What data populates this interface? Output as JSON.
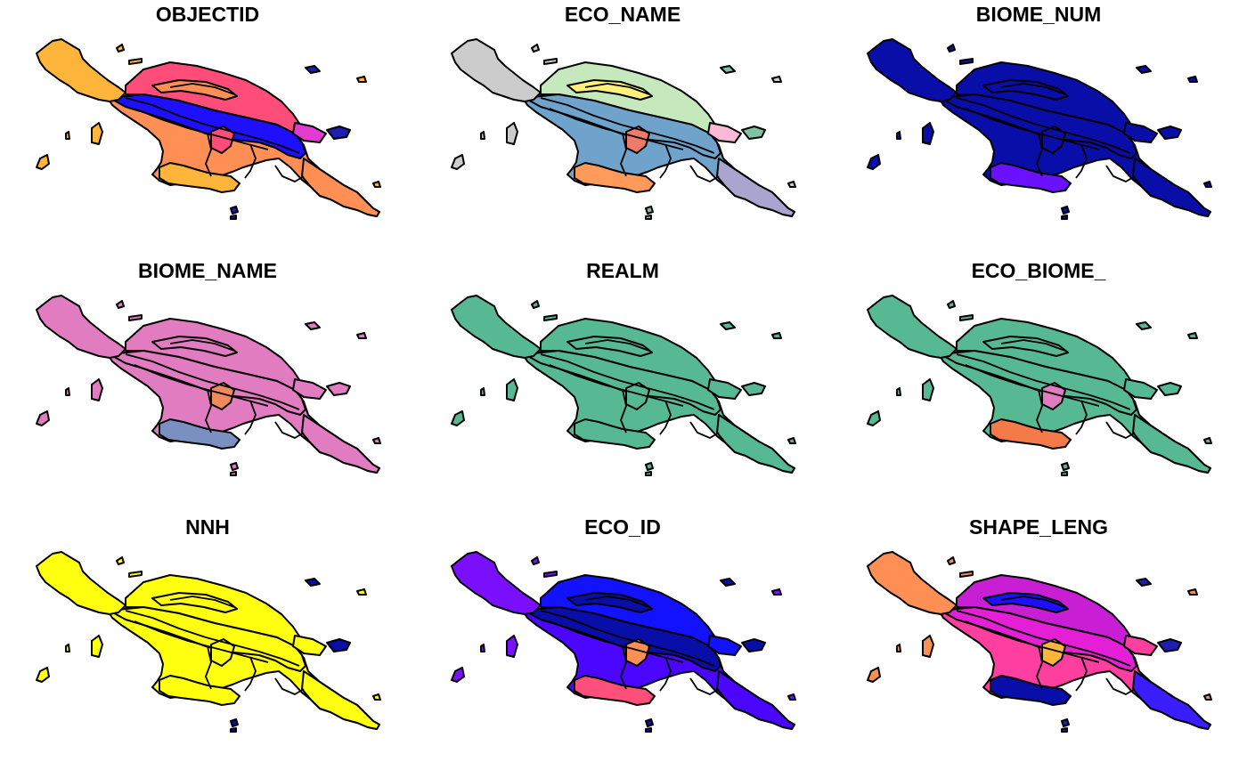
{
  "figure": {
    "panels": [
      {
        "id": "objectid",
        "title": "OBJECTID",
        "colors": {
          "main": "#ff8f55",
          "north": "#ff4d7a",
          "central": "#1e10ff",
          "west": "#ffb43a",
          "ridge": "#ff8f55",
          "south": "#ffb43a",
          "tail": "#ff8f55",
          "east": "#e13ccf",
          "islands": "#ffb43a",
          "outer": "#1e1eb0",
          "lake": "#ff4d7a"
        }
      },
      {
        "id": "eco_name",
        "title": "ECO_NAME",
        "colors": {
          "main": "#6fa3cc",
          "north": "#c5e8bc",
          "central": "#6fa3cc",
          "west": "#cccccc",
          "ridge": "#fff07a",
          "south": "#ff9a5a",
          "tail": "#a9a5cf",
          "east": "#f9b9d7",
          "islands": "#cccccc",
          "outer": "#7fc2a6",
          "lake": "#f07a6a"
        }
      },
      {
        "id": "biome_num",
        "title": "BIOME_NUM",
        "colors": {
          "main": "#0a0ea8",
          "north": "#0a0ea8",
          "central": "#0a0ea8",
          "west": "#0a0ea8",
          "ridge": "#0a0ea8",
          "south": "#6a12ff",
          "tail": "#0a0ea8",
          "east": "#0a0ea8",
          "islands": "#0a0ea8",
          "outer": "#0a0ea8",
          "lake": "#0a0ea8"
        }
      },
      {
        "id": "biome_name",
        "title": "BIOME_NAME",
        "colors": {
          "main": "#e07cbf",
          "north": "#e07cbf",
          "central": "#e07cbf",
          "west": "#e07cbf",
          "ridge": "#e07cbf",
          "south": "#7a90c0",
          "tail": "#e07cbf",
          "east": "#e07cbf",
          "islands": "#e07cbf",
          "outer": "#e07cbf",
          "lake": "#f08a5a"
        }
      },
      {
        "id": "realm",
        "title": "REALM",
        "colors": {
          "main": "#57b894",
          "north": "#57b894",
          "central": "#57b894",
          "west": "#57b894",
          "ridge": "#57b894",
          "south": "#57b894",
          "tail": "#57b894",
          "east": "#57b894",
          "islands": "#57b894",
          "outer": "#57b894",
          "lake": "#57b894"
        }
      },
      {
        "id": "eco_biome",
        "title": "ECO_BIOME_",
        "colors": {
          "main": "#57b894",
          "north": "#57b894",
          "central": "#57b894",
          "west": "#57b894",
          "ridge": "#57b894",
          "south": "#f57a4a",
          "tail": "#57b894",
          "east": "#57b894",
          "islands": "#57b894",
          "outer": "#57b894",
          "lake": "#e07cbf"
        }
      },
      {
        "id": "nnh",
        "title": "NNH",
        "colors": {
          "main": "#ffff10",
          "north": "#ffff10",
          "central": "#ffff10",
          "west": "#ffff10",
          "ridge": "#ffff10",
          "south": "#ffff10",
          "tail": "#ffff10",
          "east": "#ffff10",
          "islands": "#ffff10",
          "outer": "#0a0ea8",
          "lake": "#ffff10"
        }
      },
      {
        "id": "eco_id",
        "title": "ECO_ID",
        "colors": {
          "main": "#4a06ff",
          "north": "#1212ff",
          "central": "#0a0ea8",
          "west": "#7a10ff",
          "ridge": "#0a0ea8",
          "south": "#ff4f7a",
          "tail": "#4a06ff",
          "east": "#1212ff",
          "islands": "#7a10ff",
          "outer": "#0a0ea8",
          "lake": "#ff8f55"
        }
      },
      {
        "id": "shape_leng",
        "title": "SHAPE_LENG",
        "colors": {
          "main": "#ff3fa0",
          "north": "#c91fd4",
          "central": "#e41fd6",
          "west": "#ff8f55",
          "ridge": "#1e10ff",
          "south": "#0a0ea8",
          "tail": "#3a1eff",
          "east": "#ff3fa0",
          "islands": "#ff8f55",
          "outer": "#1e1eb0",
          "lake": "#ffb43a"
        }
      }
    ]
  }
}
